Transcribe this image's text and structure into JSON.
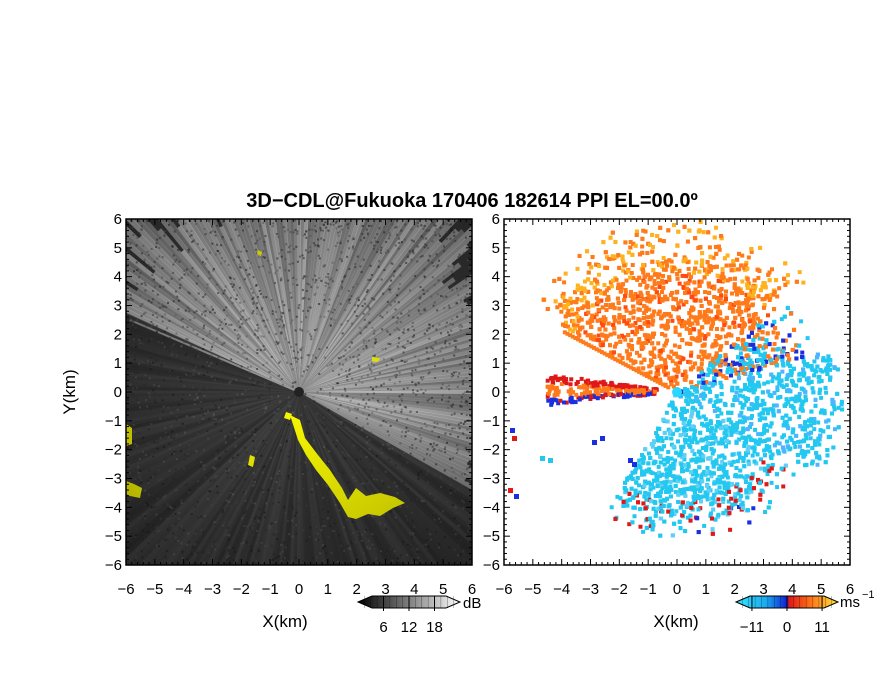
{
  "chart_data": {
    "title": "3D−CDL@Fukuoka 170406 182614 PPI EL=00.0º",
    "panels": [
      {
        "id": "reflectivity",
        "type": "heatmap",
        "quantity": "backscatter intensity",
        "xlabel": "X(km)",
        "ylabel": "Y(km)",
        "xlim": [
          -6,
          6
        ],
        "ylim": [
          -6,
          6
        ],
        "xticks": [
          "−6",
          "−5",
          "−4",
          "−3",
          "−2",
          "−1",
          "0",
          "1",
          "2",
          "3",
          "4",
          "5",
          "6"
        ],
        "yticks": [
          "−6",
          "−5",
          "−4",
          "−3",
          "−2",
          "−1",
          "0",
          "1",
          "2",
          "3",
          "4",
          "5",
          "6"
        ],
        "colorbar": {
          "unit": "dB",
          "ticks": [
            "6",
            "12",
            "18"
          ],
          "range": [
            0,
            24
          ],
          "palette": "grayscale"
        },
        "highlight_color": "#ffff00"
      },
      {
        "id": "doppler_velocity",
        "type": "heatmap",
        "quantity": "Doppler velocity",
        "xlabel": "X(km)",
        "xlim": [
          -6,
          6
        ],
        "ylim": [
          -6,
          6
        ],
        "xticks": [
          "−6",
          "−5",
          "−4",
          "−3",
          "−2",
          "−1",
          "0",
          "1",
          "2",
          "3",
          "4",
          "5",
          "6"
        ],
        "yticks": [
          "−6",
          "−5",
          "−4",
          "−3",
          "−2",
          "−1",
          "0",
          "1",
          "2",
          "3",
          "4",
          "5",
          "6"
        ],
        "colorbar": {
          "unit": "ms",
          "unit_exponent": "−1",
          "ticks": [
            "−11",
            "0",
            "11"
          ],
          "range": [
            -16,
            16
          ],
          "palette": "cyan-blue-red-orange-yellow"
        },
        "colors": {
          "approaching": "#22c8f0",
          "receding": "#ff7a1a",
          "edge_red": "#e01818",
          "edge_blue": "#1a2fe0"
        }
      }
    ]
  }
}
